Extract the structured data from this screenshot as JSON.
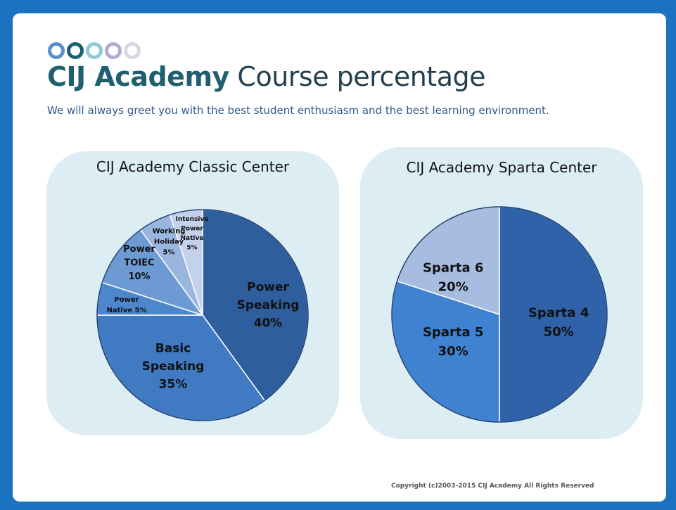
{
  "header": {
    "title_brand": "CIJ Academy",
    "title_rest": "Course percentage",
    "subtitle": "We will always greet you with the best student enthusiasm and the best learning environment.",
    "dot_colors": [
      "#5b8fc9",
      "#1f5f6f",
      "#8fcad8",
      "#b7a9cf",
      "#d9d5e8"
    ]
  },
  "chart_data": [
    {
      "type": "pie",
      "title": "CIJ Academy Classic Center",
      "slices": [
        {
          "label": "Power Speaking",
          "value": 40,
          "pct_label": "40%",
          "color": "#2f5e9f"
        },
        {
          "label": "Basic Speaking",
          "value": 35,
          "pct_label": "35%",
          "color": "#3f7ac3"
        },
        {
          "label": "Power Native",
          "value": 5,
          "pct_label": "5%",
          "color": "#4d86cb"
        },
        {
          "label": "Power TOIEC",
          "value": 10,
          "pct_label": "10%",
          "color": "#6e9ad4"
        },
        {
          "label": "Working Holiday",
          "value": 5,
          "pct_label": "5%",
          "color": "#9ab6de"
        },
        {
          "label": "Intensive Power Native",
          "value": 5,
          "pct_label": "5%",
          "color": "#c3d1ec"
        }
      ]
    },
    {
      "type": "pie",
      "title": "CIJ Academy Sparta Center",
      "slices": [
        {
          "label": "Sparta 4",
          "value": 50,
          "pct_label": "50%",
          "color": "#2f62a8"
        },
        {
          "label": "Sparta 5",
          "value": 30,
          "pct_label": "30%",
          "color": "#3f82d2"
        },
        {
          "label": "Sparta 6",
          "value": 20,
          "pct_label": "20%",
          "color": "#a7bde0"
        }
      ]
    }
  ],
  "footer": {
    "copyright": "Copyright (c)2003-2015 CIJ Academy All Rights Reserved"
  }
}
